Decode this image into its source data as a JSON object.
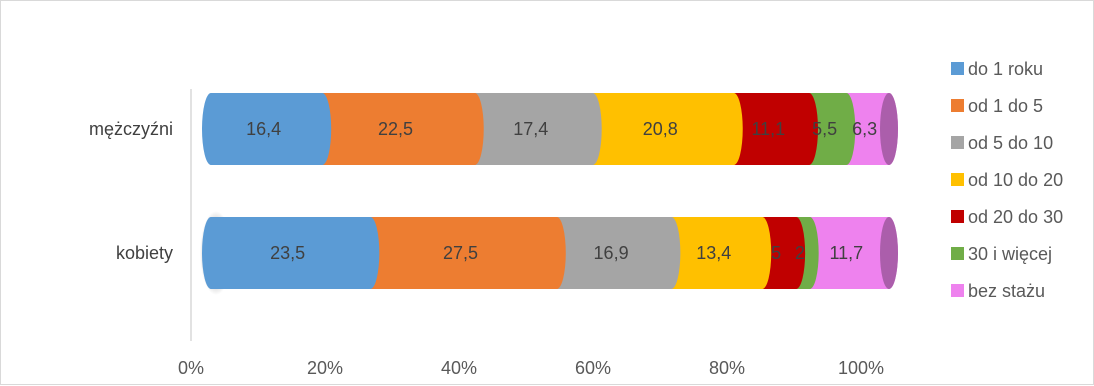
{
  "chart_data": {
    "type": "bar",
    "orientation": "horizontal",
    "stacked": "percent",
    "categories": [
      "mężczyźni",
      "kobiety"
    ],
    "xlim": [
      0,
      100
    ],
    "x_ticks": [
      "0%",
      "20%",
      "40%",
      "60%",
      "80%",
      "100%"
    ],
    "grid": false,
    "legend_position": "right",
    "series": [
      {
        "name": "do 1 roku",
        "values": [
          16.4,
          23.5
        ],
        "labels": [
          "16,4",
          "23,5"
        ],
        "color": "#5b9bd5"
      },
      {
        "name": "od 1 do 5",
        "values": [
          22.5,
          27.5
        ],
        "labels": [
          "22,5",
          "27,5"
        ],
        "color": "#ed7d31"
      },
      {
        "name": "od 5 do 10",
        "values": [
          17.4,
          16.9
        ],
        "labels": [
          "17,4",
          "16,9"
        ],
        "color": "#a5a5a5"
      },
      {
        "name": "od 10 do 20",
        "values": [
          20.8,
          13.4
        ],
        "labels": [
          "20,8",
          "13,4"
        ],
        "color": "#ffc000"
      },
      {
        "name": "od 20 do 30",
        "values": [
          11.1,
          5
        ],
        "labels": [
          "11,1",
          "5"
        ],
        "color": "#c00000"
      },
      {
        "name": "30 i więcej",
        "values": [
          5.5,
          2
        ],
        "labels": [
          "5,5",
          "2"
        ],
        "color": "#70ad47"
      },
      {
        "name": "bez stażu",
        "values": [
          6.3,
          11.7
        ],
        "labels": [
          "6,3",
          "11,7"
        ],
        "color": "#ee82ee"
      }
    ]
  }
}
